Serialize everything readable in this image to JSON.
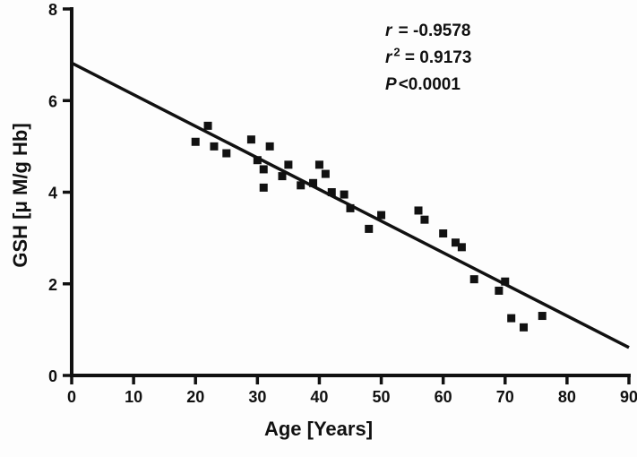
{
  "figure": {
    "background": "#fdfdfd",
    "ink_color": "#111111"
  },
  "stats": [
    {
      "symbol": "r",
      "sup": "",
      "text": " = -0.9578"
    },
    {
      "symbol": "r",
      "sup": "2",
      "text": " = 0.9173"
    },
    {
      "symbol": "P",
      "sup": "",
      "text": "<0.0001"
    }
  ],
  "chart_data": {
    "type": "scatter",
    "title": "",
    "xlabel": "Age [Years]",
    "ylabel": "GSH [μ M/g Hb]",
    "xlim": [
      0,
      90
    ],
    "ylim": [
      0,
      8
    ],
    "xticks": [
      0,
      10,
      20,
      30,
      40,
      50,
      60,
      70,
      80,
      90
    ],
    "yticks": [
      0,
      2,
      4,
      6,
      8
    ],
    "grid": false,
    "legend": "none",
    "marker": "filled-square",
    "marker_size_px": 9,
    "points": [
      [
        20,
        5.1
      ],
      [
        22,
        5.45
      ],
      [
        23,
        5.0
      ],
      [
        25,
        4.85
      ],
      [
        29,
        5.15
      ],
      [
        30,
        4.7
      ],
      [
        31,
        4.5
      ],
      [
        31,
        4.1
      ],
      [
        32,
        5.0
      ],
      [
        34,
        4.35
      ],
      [
        35,
        4.6
      ],
      [
        37,
        4.15
      ],
      [
        39,
        4.2
      ],
      [
        40,
        4.6
      ],
      [
        41,
        4.4
      ],
      [
        42,
        4.0
      ],
      [
        44,
        3.95
      ],
      [
        45,
        3.65
      ],
      [
        48,
        3.2
      ],
      [
        50,
        3.5
      ],
      [
        56,
        3.6
      ],
      [
        57,
        3.4
      ],
      [
        60,
        3.1
      ],
      [
        62,
        2.9
      ],
      [
        63,
        2.8
      ],
      [
        65,
        2.1
      ],
      [
        69,
        1.85
      ],
      [
        70,
        2.05
      ],
      [
        71,
        1.25
      ],
      [
        73,
        1.05
      ],
      [
        76,
        1.3
      ]
    ],
    "regression_line": {
      "x1": 0,
      "y1": 6.82,
      "x2": 90,
      "y2": 0.61
    }
  }
}
